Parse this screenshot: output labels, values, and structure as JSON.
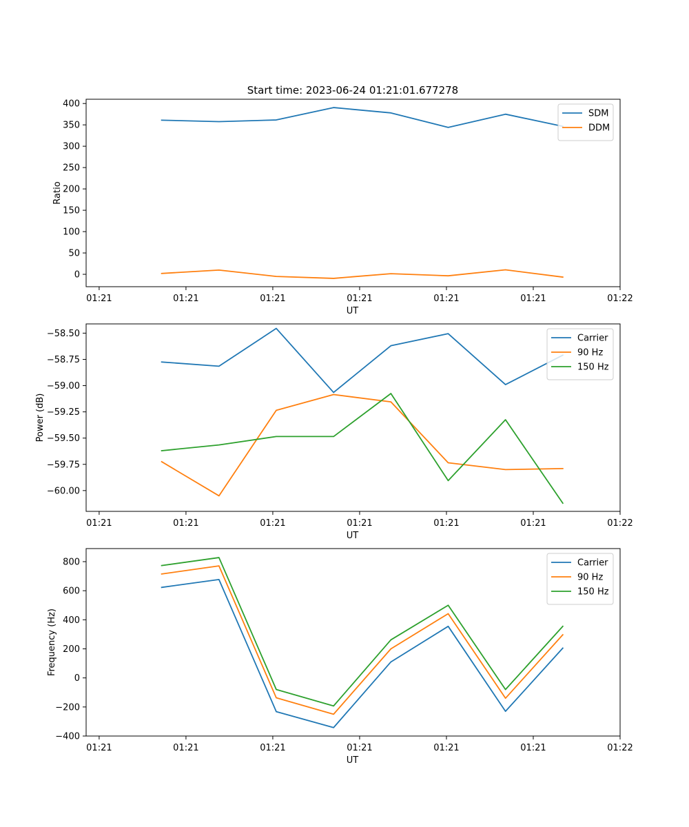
{
  "figure": {
    "title": "Start time: 2023-06-24 01:21:01.677278"
  },
  "chart_data": [
    {
      "type": "line",
      "xlabel": "UT",
      "ylabel": "Ratio",
      "x": [
        0.72,
        1.38,
        2.04,
        2.7,
        3.36,
        4.02,
        4.68,
        5.34
      ],
      "x_ticks": [
        0.0,
        1.0,
        2.0,
        3.0,
        4.0,
        5.0,
        6.0
      ],
      "x_tick_labels": [
        "01:21",
        "01:21",
        "01:21",
        "01:21",
        "01:21",
        "01:21",
        "01:22"
      ],
      "xlim": [
        -0.15,
        6.0
      ],
      "ylim": [
        -29,
        410
      ],
      "y_ticks": [
        0,
        50,
        100,
        150,
        200,
        250,
        300,
        350,
        400
      ],
      "y_tick_labels": [
        "0",
        "50",
        "100",
        "150",
        "200",
        "250",
        "300",
        "350",
        "400"
      ],
      "legend": "top-right",
      "grid": false,
      "series": [
        {
          "name": "SDM",
          "color": "#1f77b4",
          "values": [
            361,
            357.5,
            361.5,
            390.5,
            378,
            344,
            375,
            346.5
          ]
        },
        {
          "name": "DDM",
          "color": "#ff7f0e",
          "values": [
            2,
            10,
            -5,
            -9.5,
            1.5,
            -3.5,
            10.5,
            -6.5
          ]
        }
      ]
    },
    {
      "type": "line",
      "xlabel": "UT",
      "ylabel": "Power (dB)",
      "x": [
        0.72,
        1.38,
        2.04,
        2.7,
        3.36,
        4.02,
        4.68,
        5.34
      ],
      "x_ticks": [
        0.0,
        1.0,
        2.0,
        3.0,
        4.0,
        5.0,
        6.0
      ],
      "x_tick_labels": [
        "01:21",
        "01:21",
        "01:21",
        "01:21",
        "01:21",
        "01:21",
        "01:22"
      ],
      "xlim": [
        -0.15,
        6.0
      ],
      "ylim": [
        -60.198,
        -58.412
      ],
      "y_ticks": [
        -60.0,
        -59.75,
        -59.5,
        -59.25,
        -59.0,
        -58.75,
        -58.5
      ],
      "y_tick_labels": [
        "−60.00",
        "−59.75",
        "−59.50",
        "−59.25",
        "−59.00",
        "−58.75",
        "−58.50"
      ],
      "legend": "top-right",
      "grid": false,
      "series": [
        {
          "name": "Carrier",
          "color": "#1f77b4",
          "values": [
            -58.775,
            -58.815,
            -58.455,
            -59.065,
            -58.62,
            -58.505,
            -58.99,
            -58.71
          ]
        },
        {
          "name": "90 Hz",
          "color": "#ff7f0e",
          "values": [
            -59.725,
            -60.05,
            -59.235,
            -59.085,
            -59.155,
            -59.735,
            -59.8,
            -59.79
          ]
        },
        {
          "name": "150 Hz",
          "color": "#2ca02c",
          "values": [
            -59.62,
            -59.565,
            -59.485,
            -59.485,
            -59.075,
            -59.905,
            -59.325,
            -60.12
          ]
        }
      ]
    },
    {
      "type": "line",
      "xlabel": "UT",
      "ylabel": "Frequency (Hz)",
      "x": [
        0.72,
        1.38,
        2.04,
        2.7,
        3.36,
        4.02,
        4.68,
        5.34
      ],
      "x_ticks": [
        0.0,
        1.0,
        2.0,
        3.0,
        4.0,
        5.0,
        6.0
      ],
      "x_tick_labels": [
        "01:21",
        "01:21",
        "01:21",
        "01:21",
        "01:21",
        "01:21",
        "01:22"
      ],
      "xlim": [
        -0.15,
        6.0
      ],
      "ylim": [
        -400,
        890
      ],
      "y_ticks": [
        -400,
        -200,
        0,
        200,
        400,
        600,
        800
      ],
      "y_tick_labels": [
        "−400",
        "−200",
        "0",
        "200",
        "400",
        "600",
        "800"
      ],
      "legend": "top-right",
      "grid": false,
      "series": [
        {
          "name": "Carrier",
          "color": "#1f77b4",
          "values": [
            623,
            677,
            -232,
            -342,
            110,
            355,
            -230,
            205
          ]
        },
        {
          "name": "90 Hz",
          "color": "#ff7f0e",
          "values": [
            715,
            771,
            -137,
            -250,
            200,
            442,
            -140,
            297
          ]
        },
        {
          "name": "150 Hz",
          "color": "#2ca02c",
          "values": [
            773,
            828,
            -80,
            -193,
            262,
            500,
            -80,
            355
          ]
        }
      ]
    }
  ]
}
